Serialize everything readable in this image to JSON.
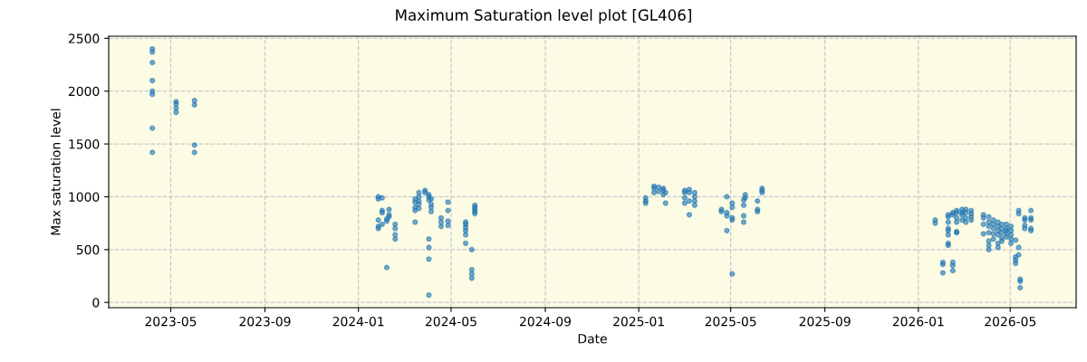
{
  "chart_data": {
    "type": "scatter",
    "title": "Maximum Saturation level plot [GL406]",
    "xlabel": "Date",
    "ylabel": "Max saturation level",
    "series": [
      {
        "color": "#1f77b4",
        "x": [
          "2023-04-07",
          "2023-04-07",
          "2023-04-07",
          "2023-04-07",
          "2023-04-07",
          "2023-04-07",
          "2023-04-07",
          "2023-04-07",
          "2023-05-08",
          "2023-05-08",
          "2023-05-08",
          "2023-05-08",
          "2023-06-01",
          "2023-06-01",
          "2023-06-01",
          "2023-06-01",
          "2024-01-27",
          "2024-01-27",
          "2024-01-27",
          "2024-01-27",
          "2024-01-27",
          "2024-02-01",
          "2024-02-01",
          "2024-02-01",
          "2024-02-01",
          "2024-02-07",
          "2024-02-07",
          "2024-02-07",
          "2024-02-10",
          "2024-02-10",
          "2024-02-10",
          "2024-02-18",
          "2024-02-18",
          "2024-02-18",
          "2024-02-18",
          "2024-03-15",
          "2024-03-15",
          "2024-03-15",
          "2024-03-15",
          "2024-03-15",
          "2024-03-20",
          "2024-03-20",
          "2024-03-20",
          "2024-03-20",
          "2024-03-20",
          "2024-03-28",
          "2024-03-28",
          "2024-04-02",
          "2024-04-02",
          "2024-04-02",
          "2024-04-02",
          "2024-04-02",
          "2024-04-02",
          "2024-04-02",
          "2024-04-05",
          "2024-04-05",
          "2024-04-05",
          "2024-04-05",
          "2024-04-18",
          "2024-04-18",
          "2024-04-18",
          "2024-04-27",
          "2024-04-27",
          "2024-04-27",
          "2024-04-27",
          "2024-05-20",
          "2024-05-20",
          "2024-05-20",
          "2024-05-20",
          "2024-05-20",
          "2024-05-20",
          "2024-05-28",
          "2024-05-28",
          "2024-05-28",
          "2024-05-28",
          "2024-06-01",
          "2024-06-01",
          "2024-06-01",
          "2024-06-01",
          "2024-06-01",
          "2025-01-10",
          "2025-01-10",
          "2025-01-10",
          "2025-01-21",
          "2025-01-21",
          "2025-01-21",
          "2025-01-27",
          "2025-01-27",
          "2025-02-02",
          "2025-02-02",
          "2025-02-02",
          "2025-02-05",
          "2025-02-05",
          "2025-03-02",
          "2025-03-02",
          "2025-03-02",
          "2025-03-02",
          "2025-03-08",
          "2025-03-08",
          "2025-03-08",
          "2025-03-08",
          "2025-03-15",
          "2025-03-15",
          "2025-03-15",
          "2025-03-15",
          "2025-04-19",
          "2025-04-19",
          "2025-04-26",
          "2025-04-26",
          "2025-04-26",
          "2025-04-26",
          "2025-05-03",
          "2025-05-03",
          "2025-05-03",
          "2025-05-03",
          "2025-05-03",
          "2025-05-18",
          "2025-05-18",
          "2025-05-18",
          "2025-05-18",
          "2025-05-20",
          "2025-05-20",
          "2025-06-05",
          "2025-06-05",
          "2025-06-05",
          "2025-06-11",
          "2025-06-11",
          "2025-06-11",
          "2026-01-23",
          "2026-01-23",
          "2026-02-02",
          "2026-02-02",
          "2026-02-02",
          "2026-02-09",
          "2026-02-09",
          "2026-02-09",
          "2026-02-09",
          "2026-02-09",
          "2026-02-09",
          "2026-02-09",
          "2026-02-09",
          "2026-02-15",
          "2026-02-15",
          "2026-02-15",
          "2026-02-15",
          "2026-02-15",
          "2026-02-20",
          "2026-02-20",
          "2026-02-20",
          "2026-02-20",
          "2026-02-20",
          "2026-02-20",
          "2026-02-27",
          "2026-02-27",
          "2026-02-27",
          "2026-02-27",
          "2026-03-04",
          "2026-03-04",
          "2026-03-04",
          "2026-03-04",
          "2026-03-11",
          "2026-03-11",
          "2026-03-11",
          "2026-03-11",
          "2026-03-27",
          "2026-03-27",
          "2026-03-27",
          "2026-03-27",
          "2026-04-03",
          "2026-04-03",
          "2026-04-03",
          "2026-04-03",
          "2026-04-03",
          "2026-04-03",
          "2026-04-03",
          "2026-04-09",
          "2026-04-09",
          "2026-04-09",
          "2026-04-09",
          "2026-04-09",
          "2026-04-15",
          "2026-04-15",
          "2026-04-15",
          "2026-04-15",
          "2026-04-15",
          "2026-04-15",
          "2026-04-20",
          "2026-04-20",
          "2026-04-20",
          "2026-04-20",
          "2026-04-20",
          "2026-04-26",
          "2026-04-26",
          "2026-04-26",
          "2026-04-26",
          "2026-04-26",
          "2026-05-02",
          "2026-05-02",
          "2026-05-02",
          "2026-05-02",
          "2026-05-02",
          "2026-05-08",
          "2026-05-08",
          "2026-05-08",
          "2026-05-08",
          "2026-05-12",
          "2026-05-12",
          "2026-05-12",
          "2026-05-12",
          "2026-05-14",
          "2026-05-14",
          "2026-05-14",
          "2026-05-20",
          "2026-05-20",
          "2026-05-20",
          "2026-05-20",
          "2026-05-28",
          "2026-05-28",
          "2026-05-28",
          "2026-05-28",
          "2026-05-28"
        ],
        "values": [
          2400,
          2370,
          2270,
          2100,
          2000,
          1970,
          1650,
          1420,
          1900,
          1880,
          1840,
          1800,
          1910,
          1870,
          1490,
          1420,
          1000,
          980,
          780,
          720,
          700,
          990,
          870,
          850,
          740,
          330,
          790,
          770,
          880,
          830,
          810,
          740,
          700,
          640,
          600,
          980,
          950,
          900,
          870,
          760,
          1040,
          1000,
          960,
          930,
          890,
          1060,
          1040,
          1020,
          1000,
          970,
          600,
          520,
          410,
          70,
          980,
          930,
          900,
          860,
          800,
          760,
          720,
          950,
          870,
          770,
          730,
          760,
          740,
          710,
          680,
          640,
          560,
          500,
          310,
          270,
          230,
          920,
          900,
          880,
          860,
          840,
          990,
          960,
          940,
          1100,
          1080,
          1040,
          1090,
          1050,
          1080,
          1060,
          1020,
          1040,
          940,
          1060,
          1040,
          990,
          940,
          1070,
          1040,
          960,
          830,
          1040,
          1000,
          960,
          920,
          880,
          860,
          1000,
          850,
          820,
          680,
          940,
          900,
          800,
          780,
          270,
          970,
          920,
          820,
          760,
          1020,
          990,
          960,
          880,
          860,
          1080,
          1060,
          1040,
          780,
          750,
          380,
          360,
          280,
          830,
          810,
          760,
          700,
          680,
          640,
          560,
          540,
          850,
          830,
          380,
          350,
          300,
          870,
          850,
          800,
          760,
          670,
          660,
          880,
          850,
          830,
          780,
          880,
          850,
          800,
          760,
          870,
          840,
          810,
          780,
          830,
          800,
          740,
          650,
          810,
          760,
          720,
          660,
          580,
          540,
          500,
          780,
          740,
          700,
          650,
          600,
          760,
          720,
          680,
          640,
          560,
          520,
          740,
          700,
          660,
          610,
          580,
          740,
          700,
          680,
          650,
          620,
          720,
          680,
          640,
          600,
          560,
          430,
          400,
          370,
          590,
          870,
          840,
          520,
          450,
          220,
          200,
          140,
          800,
          780,
          730,
          700,
          870,
          800,
          780,
          700,
          680
        ]
      }
    ],
    "xlim": [
      "2023-02-09",
      "2026-07-26"
    ],
    "xticks": [
      {
        "value": "2023-05-01",
        "label": "2023-05"
      },
      {
        "value": "2023-09-01",
        "label": "2023-09"
      },
      {
        "value": "2024-01-01",
        "label": "2024-01"
      },
      {
        "value": "2024-05-01",
        "label": "2024-05"
      },
      {
        "value": "2024-09-01",
        "label": "2024-09"
      },
      {
        "value": "2025-01-01",
        "label": "2025-01"
      },
      {
        "value": "2025-05-01",
        "label": "2025-05"
      },
      {
        "value": "2025-09-01",
        "label": "2025-09"
      },
      {
        "value": "2026-01-01",
        "label": "2026-01"
      },
      {
        "value": "2026-05-01",
        "label": "2026-05"
      }
    ],
    "ylim": [
      -50,
      2520
    ],
    "yticks": [
      0,
      500,
      1000,
      1500,
      2000,
      2500
    ],
    "grid": true,
    "marker": "circle",
    "legend": false
  }
}
